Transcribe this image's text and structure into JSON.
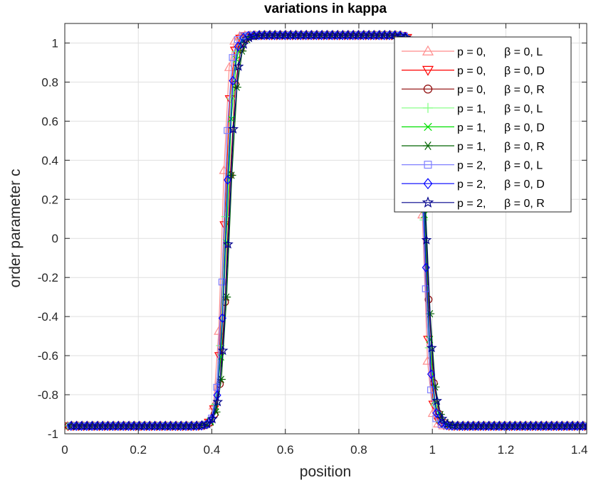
{
  "chart_data": {
    "type": "line",
    "title": "variations in kappa",
    "xlabel": "position",
    "ylabel": "order parameter c",
    "xlim": [
      0,
      1.42
    ],
    "ylim": [
      -1,
      1.1
    ],
    "xticks": [
      0,
      0.2,
      0.4,
      0.6,
      0.8,
      1,
      1.2,
      1.4
    ],
    "xtick_labels": [
      "0",
      "0.2",
      "0.4",
      "0.6",
      "0.8",
      "1",
      "1.2",
      "1.4"
    ],
    "yticks": [
      -1,
      -0.8,
      -0.6,
      -0.4,
      -0.2,
      0,
      0.2,
      0.4,
      0.6,
      0.8,
      1
    ],
    "ytick_labels": [
      "-1",
      "-0.8",
      "-0.6",
      "-0.4",
      "-0.2",
      "0",
      "0.2",
      "0.4",
      "0.6",
      "0.8",
      "1"
    ],
    "grid": true,
    "legend_position": "top-right",
    "profile": {
      "min": -0.96,
      "max": 1.04,
      "n_points": 100,
      "left_interface": 0.44,
      "right_interface": 0.98
    },
    "series": [
      {
        "name": "p = 0, β = 0, L",
        "label_p": "p = 0,",
        "label_beta": "β = 0, L",
        "color": "#ff8c8c",
        "marker": "triangle-up",
        "width": 0.016,
        "shift": -0.012,
        "phase": 0.0
      },
      {
        "name": "p = 0, β = 0, D",
        "label_p": "p = 0,",
        "label_beta": "β = 0, D",
        "color": "#ff0000",
        "marker": "triangle-down",
        "width": 0.018,
        "shift": -0.006,
        "phase": 0.1
      },
      {
        "name": "p = 0, β = 0, R",
        "label_p": "p = 0,",
        "label_beta": "β = 0, R",
        "color": "#8b0000",
        "marker": "circle",
        "width": 0.021,
        "shift": 0.004,
        "phase": 0.2
      },
      {
        "name": "p = 1, β = 0, L",
        "label_p": "p = 1,",
        "label_beta": "β = 0, L",
        "color": "#7fff7f",
        "marker": "plus",
        "width": 0.019,
        "shift": -0.004,
        "phase": 0.3
      },
      {
        "name": "p = 1, β = 0, D",
        "label_p": "p = 1,",
        "label_beta": "β = 0, D",
        "color": "#00e000",
        "marker": "x",
        "width": 0.02,
        "shift": 0.0,
        "phase": 0.4
      },
      {
        "name": "p = 1, β = 0, R",
        "label_p": "p = 1,",
        "label_beta": "β = 0, R",
        "color": "#006400",
        "marker": "asterisk",
        "width": 0.022,
        "shift": 0.008,
        "phase": 0.5
      },
      {
        "name": "p = 2, β = 0, L",
        "label_p": "p = 2,",
        "label_beta": "β = 0, L",
        "color": "#7f7fff",
        "marker": "square",
        "width": 0.017,
        "shift": -0.008,
        "phase": 0.6
      },
      {
        "name": "p = 2, β = 0, D",
        "label_p": "p = 2,",
        "label_beta": "β = 0, D",
        "color": "#0000ff",
        "marker": "diamond",
        "width": 0.019,
        "shift": -0.002,
        "phase": 0.7
      },
      {
        "name": "p = 2, β = 0, R",
        "label_p": "p = 2,",
        "label_beta": "β = 0, R",
        "color": "#00008b",
        "marker": "pentagram",
        "width": 0.022,
        "shift": 0.006,
        "phase": 0.8
      }
    ]
  }
}
